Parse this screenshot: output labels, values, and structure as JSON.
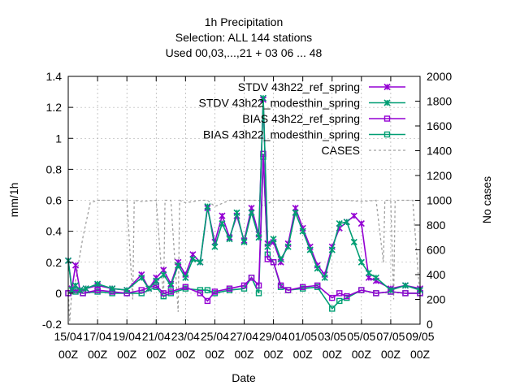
{
  "chart_data": {
    "type": "line",
    "title_lines": [
      "1h Precipitation",
      "Selection: ALL    144 stations",
      "Used  00,03,...,21  + 03 06 ... 48"
    ],
    "xlabel": "Date",
    "ylabel": "mm/1h",
    "y2label": "No cases",
    "ylim": [
      -0.2,
      1.4
    ],
    "y2lim": [
      0,
      2000
    ],
    "xlim": [
      0,
      24
    ],
    "y_ticks": [
      "-0.2",
      "0",
      "0.2",
      "0.4",
      "0.6",
      "0.8",
      "1",
      "1.2",
      "1.4"
    ],
    "y2_ticks": [
      "0",
      "200",
      "400",
      "600",
      "800",
      "1000",
      "1200",
      "1400",
      "1600",
      "1800",
      "2000"
    ],
    "x_ticks": [
      {
        "d": "15/04",
        "h": "00Z"
      },
      {
        "d": "17/04",
        "h": "00Z"
      },
      {
        "d": "19/04",
        "h": "00Z"
      },
      {
        "d": "21/04",
        "h": "00Z"
      },
      {
        "d": "23/04",
        "h": "00Z"
      },
      {
        "d": "25/04",
        "h": "00Z"
      },
      {
        "d": "27/04",
        "h": "00Z"
      },
      {
        "d": "29/04",
        "h": "00Z"
      },
      {
        "d": "01/05",
        "h": "00Z"
      },
      {
        "d": "03/05",
        "h": "00Z"
      },
      {
        "d": "05/05",
        "h": "00Z"
      },
      {
        "d": "07/05",
        "h": "00Z"
      },
      {
        "d": "09/05",
        "h": "00Z"
      }
    ],
    "legend_position": "top-right",
    "grid": true,
    "series": [
      {
        "name": "STDV 43h22_ref_spring",
        "axis": "y1",
        "marker": "x",
        "color": "#9400d3",
        "points": [
          [
            0,
            0.21
          ],
          [
            0.25,
            0.03
          ],
          [
            0.5,
            0.18
          ],
          [
            0.8,
            0.02
          ],
          [
            1.2,
            0.03
          ],
          [
            2,
            0.05
          ],
          [
            3,
            0.03
          ],
          [
            4,
            0.02
          ],
          [
            5,
            0.12
          ],
          [
            5.5,
            0.03
          ],
          [
            6,
            0.1
          ],
          [
            6.5,
            0.15
          ],
          [
            7,
            0.06
          ],
          [
            7.5,
            0.2
          ],
          [
            8,
            0.12
          ],
          [
            8.5,
            0.25
          ],
          [
            9,
            0.2
          ],
          [
            9.5,
            0.55
          ],
          [
            10,
            0.33
          ],
          [
            10.5,
            0.5
          ],
          [
            11,
            0.36
          ],
          [
            11.5,
            0.5
          ],
          [
            12,
            0.34
          ],
          [
            12.5,
            0.55
          ],
          [
            13,
            0.38
          ],
          [
            13.3,
            1.25
          ],
          [
            13.6,
            0.32
          ],
          [
            14,
            0.33
          ],
          [
            14.5,
            0.2
          ],
          [
            15,
            0.32
          ],
          [
            15.5,
            0.55
          ],
          [
            16,
            0.42
          ],
          [
            16.5,
            0.3
          ],
          [
            17,
            0.18
          ],
          [
            17.5,
            0.12
          ],
          [
            18,
            0.3
          ],
          [
            18.5,
            0.42
          ],
          [
            19,
            0.46
          ],
          [
            19.5,
            0.5
          ],
          [
            20,
            0.45
          ],
          [
            20.5,
            0.1
          ],
          [
            21,
            0.08
          ],
          [
            22,
            0.03
          ],
          [
            23,
            0.05
          ],
          [
            24,
            0.03
          ]
        ]
      },
      {
        "name": "STDV 43h22_modesthin_spring",
        "axis": "y1",
        "marker": "x",
        "color": "#009e73",
        "points": [
          [
            0,
            0.21
          ],
          [
            0.25,
            0.02
          ],
          [
            0.5,
            0.05
          ],
          [
            0.8,
            0.02
          ],
          [
            1.2,
            0.03
          ],
          [
            2,
            0.06
          ],
          [
            3,
            0.03
          ],
          [
            4,
            0.02
          ],
          [
            5,
            0.1
          ],
          [
            5.5,
            0.03
          ],
          [
            6,
            0.08
          ],
          [
            6.5,
            0.12
          ],
          [
            7,
            0.05
          ],
          [
            7.5,
            0.18
          ],
          [
            8,
            0.1
          ],
          [
            8.5,
            0.22
          ],
          [
            9,
            0.2
          ],
          [
            9.5,
            0.56
          ],
          [
            10,
            0.3
          ],
          [
            10.5,
            0.45
          ],
          [
            11,
            0.35
          ],
          [
            11.5,
            0.52
          ],
          [
            12,
            0.33
          ],
          [
            12.5,
            0.52
          ],
          [
            13,
            0.36
          ],
          [
            13.3,
            1.26
          ],
          [
            13.6,
            0.3
          ],
          [
            14,
            0.35
          ],
          [
            14.5,
            0.22
          ],
          [
            15,
            0.3
          ],
          [
            15.5,
            0.52
          ],
          [
            16,
            0.4
          ],
          [
            16.5,
            0.28
          ],
          [
            17,
            0.16
          ],
          [
            17.5,
            0.1
          ],
          [
            18,
            0.28
          ],
          [
            18.5,
            0.45
          ],
          [
            19,
            0.46
          ],
          [
            19.5,
            0.33
          ],
          [
            20,
            0.2
          ],
          [
            20.5,
            0.13
          ],
          [
            21,
            0.1
          ],
          [
            22,
            0.02
          ],
          [
            23,
            0.05
          ],
          [
            24,
            0.02
          ]
        ]
      },
      {
        "name": "BIAS 43h22_ref_spring",
        "axis": "y1",
        "marker": "square",
        "color": "#9400d3",
        "points": [
          [
            0,
            0.0
          ],
          [
            0.5,
            0.02
          ],
          [
            1,
            0.0
          ],
          [
            2,
            0.02
          ],
          [
            3,
            0.01
          ],
          [
            4,
            0.0
          ],
          [
            5,
            0.02
          ],
          [
            6,
            0.05
          ],
          [
            6.5,
            0.0
          ],
          [
            7,
            0.01
          ],
          [
            8,
            0.04
          ],
          [
            9,
            0.0
          ],
          [
            9.5,
            -0.05
          ],
          [
            10,
            0.01
          ],
          [
            11,
            0.03
          ],
          [
            12,
            0.05
          ],
          [
            12.5,
            0.1
          ],
          [
            13,
            0.05
          ],
          [
            13.3,
            0.9
          ],
          [
            13.6,
            0.22
          ],
          [
            14,
            0.2
          ],
          [
            14.5,
            0.05
          ],
          [
            15,
            0.02
          ],
          [
            16,
            0.04
          ],
          [
            17,
            0.05
          ],
          [
            18,
            -0.03
          ],
          [
            18.5,
            0.0
          ],
          [
            19,
            -0.02
          ],
          [
            20,
            0.02
          ],
          [
            21,
            0.0
          ],
          [
            22,
            0.01
          ],
          [
            23,
            0.0
          ],
          [
            24,
            0.0
          ]
        ]
      },
      {
        "name": "BIAS 43h22_modesthin_spring",
        "axis": "y1",
        "marker": "square",
        "color": "#009e73",
        "points": [
          [
            0,
            0.0
          ],
          [
            0.5,
            0.01
          ],
          [
            1,
            0.0
          ],
          [
            2,
            0.01
          ],
          [
            3,
            0.0
          ],
          [
            4,
            0.0
          ],
          [
            5,
            0.0
          ],
          [
            6,
            0.04
          ],
          [
            6.5,
            -0.02
          ],
          [
            7,
            0.0
          ],
          [
            8,
            0.03
          ],
          [
            9,
            0.02
          ],
          [
            9.5,
            0.02
          ],
          [
            10,
            0.0
          ],
          [
            11,
            0.02
          ],
          [
            12,
            0.03
          ],
          [
            12.5,
            0.1
          ],
          [
            13,
            0.0
          ],
          [
            13.3,
            0.88
          ],
          [
            13.6,
            0.25
          ],
          [
            14,
            0.2
          ],
          [
            14.5,
            0.04
          ],
          [
            15,
            0.02
          ],
          [
            16,
            0.03
          ],
          [
            17,
            0.04
          ],
          [
            18,
            -0.1
          ],
          [
            18.5,
            -0.05
          ],
          [
            19,
            -0.03
          ],
          [
            20,
            0.02
          ],
          [
            21,
            0.0
          ],
          [
            22,
            0.01
          ],
          [
            23,
            0.0
          ],
          [
            24,
            0.0
          ]
        ]
      },
      {
        "name": "CASES",
        "axis": "y2",
        "marker": "none",
        "color": "#a0a0a0",
        "dash": true,
        "points": [
          [
            0,
            280
          ],
          [
            0.1,
            20
          ],
          [
            0.25,
            280
          ],
          [
            0.5,
            350
          ],
          [
            1,
            700
          ],
          [
            1.5,
            980
          ],
          [
            2,
            1000
          ],
          [
            3,
            1000
          ],
          [
            4,
            1000
          ],
          [
            4.4,
            200
          ],
          [
            4.5,
            1000
          ],
          [
            5,
            990
          ],
          [
            6,
            1000
          ],
          [
            6.5,
            200
          ],
          [
            6.6,
            1000
          ],
          [
            7,
            1000
          ],
          [
            7.5,
            100
          ],
          [
            7.6,
            1000
          ],
          [
            8,
            980
          ],
          [
            9,
            1000
          ],
          [
            9.5,
            1000
          ],
          [
            10,
            950
          ],
          [
            11,
            1000
          ],
          [
            12,
            1000
          ],
          [
            13,
            1000
          ],
          [
            13.3,
            950
          ],
          [
            14,
            1000
          ],
          [
            15,
            1000
          ],
          [
            16,
            1000
          ],
          [
            17,
            1000
          ],
          [
            18,
            1000
          ],
          [
            19,
            1000
          ],
          [
            20,
            990
          ],
          [
            21,
            1000
          ],
          [
            21.5,
            500
          ],
          [
            21.6,
            1000
          ],
          [
            22,
            1000
          ],
          [
            22.2,
            200
          ],
          [
            22.3,
            1000
          ],
          [
            23,
            1000
          ],
          [
            23.5,
            1000
          ],
          [
            24,
            200
          ]
        ]
      }
    ]
  }
}
